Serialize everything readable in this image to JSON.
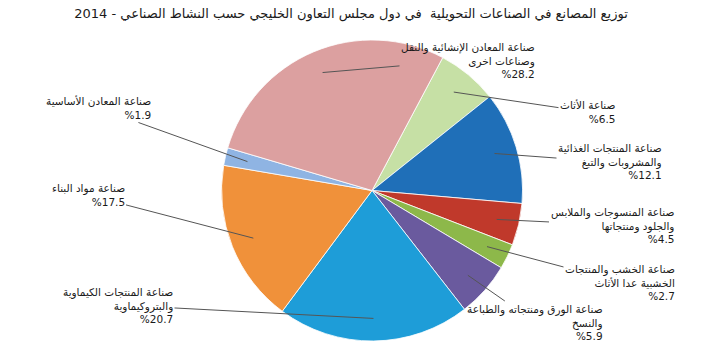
{
  "chart_data": {
    "type": "pie",
    "title": "توزيع المصانع في الصناعات التحويلية  في دول مجلس التعاون الخليجي حسب النشاط الصناعي - 2014",
    "categories": [
      "صناعة الأثاث",
      "صناعة المنتجات الغذائية\nوالمشروبات والتبغ",
      "صناعة المنسوجات والملابس\nوالجلود ومنتجاتها",
      "صناعة الخشب والمنتجات\nالخشبية عدا الأثاث",
      "صناعة الورق ومنتجاته والطباعة\nوالنسخ",
      "صناعة المنتجات الكيماوية\nوالبتروكيماوية",
      "صناعة مواد البناء",
      "صناعة المعادن الأساسية",
      "صناعة المعادن الإنشائية والنقل\nوصناعات اخرى"
    ],
    "values": [
      6.5,
      12.1,
      4.5,
      2.7,
      5.9,
      20.7,
      17.5,
      1.9,
      28.2
    ],
    "value_labels": [
      "%6.5",
      "%12.1",
      "%4.5",
      "%2.7",
      "%5.9",
      "%20.7",
      "%17.5",
      "%1.9",
      "%28.2"
    ],
    "colors": [
      "#c6e0a5",
      "#1f6fb8",
      "#c0392b",
      "#8db84a",
      "#6a5a9e",
      "#1e9dd8",
      "#f0913a",
      "#8fb4e3",
      "#dca0a0"
    ],
    "data_labels": true
  }
}
